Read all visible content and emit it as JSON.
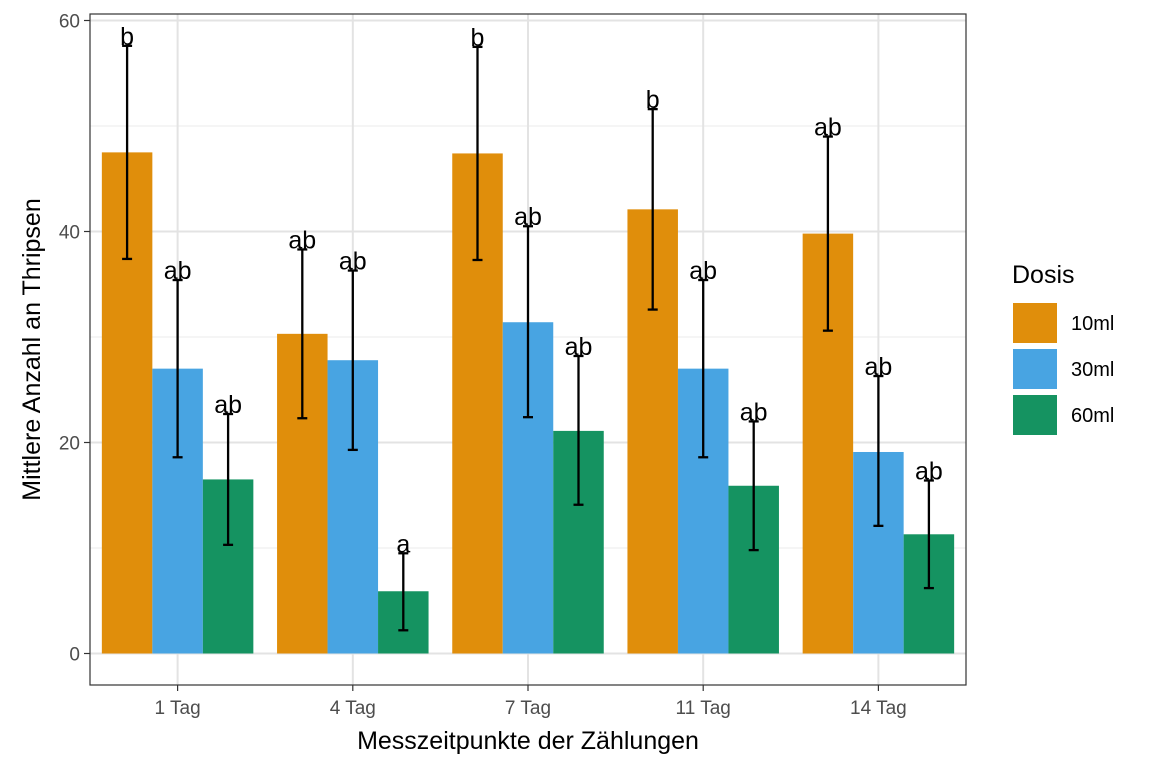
{
  "chart_data": {
    "type": "bar",
    "title": "",
    "xlabel": "Messzeitpunkte der Zählungen",
    "ylabel": "Mittlere Anzahl an Thripsen",
    "ylim": [
      -3,
      60.5
    ],
    "yticks": [
      "0",
      "20",
      "40",
      "60"
    ],
    "grid": true,
    "legend_position": "right",
    "legend_title": "Dosis",
    "categories": [
      "1 Tag",
      "4 Tag",
      "7 Tag",
      "11 Tag",
      "14 Tag"
    ],
    "series": [
      {
        "name": "10ml",
        "color": "#E08E0B",
        "values": [
          47.5,
          30.3,
          47.4,
          42.1,
          39.8
        ],
        "error_low": [
          37.4,
          22.3,
          37.3,
          32.6,
          30.6
        ],
        "error_high": [
          57.6,
          38.3,
          57.5,
          51.6,
          49.0
        ],
        "labels": [
          "b",
          "ab",
          "b",
          "b",
          "ab"
        ]
      },
      {
        "name": "30ml",
        "color": "#48A4E2",
        "values": [
          27.0,
          27.8,
          31.4,
          27.0,
          19.1
        ],
        "error_low": [
          18.6,
          19.3,
          22.4,
          18.6,
          12.1
        ],
        "error_high": [
          35.4,
          36.3,
          40.5,
          35.4,
          26.3
        ],
        "labels": [
          "ab",
          "ab",
          "ab",
          "ab",
          "ab"
        ]
      },
      {
        "name": "60ml",
        "color": "#159361",
        "values": [
          16.5,
          5.9,
          21.1,
          15.9,
          11.3
        ],
        "error_low": [
          10.3,
          2.2,
          14.1,
          9.8,
          6.2
        ],
        "error_high": [
          22.7,
          9.5,
          28.2,
          22.0,
          16.4
        ],
        "labels": [
          "ab",
          "a",
          "ab",
          "ab",
          "ab"
        ]
      }
    ]
  }
}
